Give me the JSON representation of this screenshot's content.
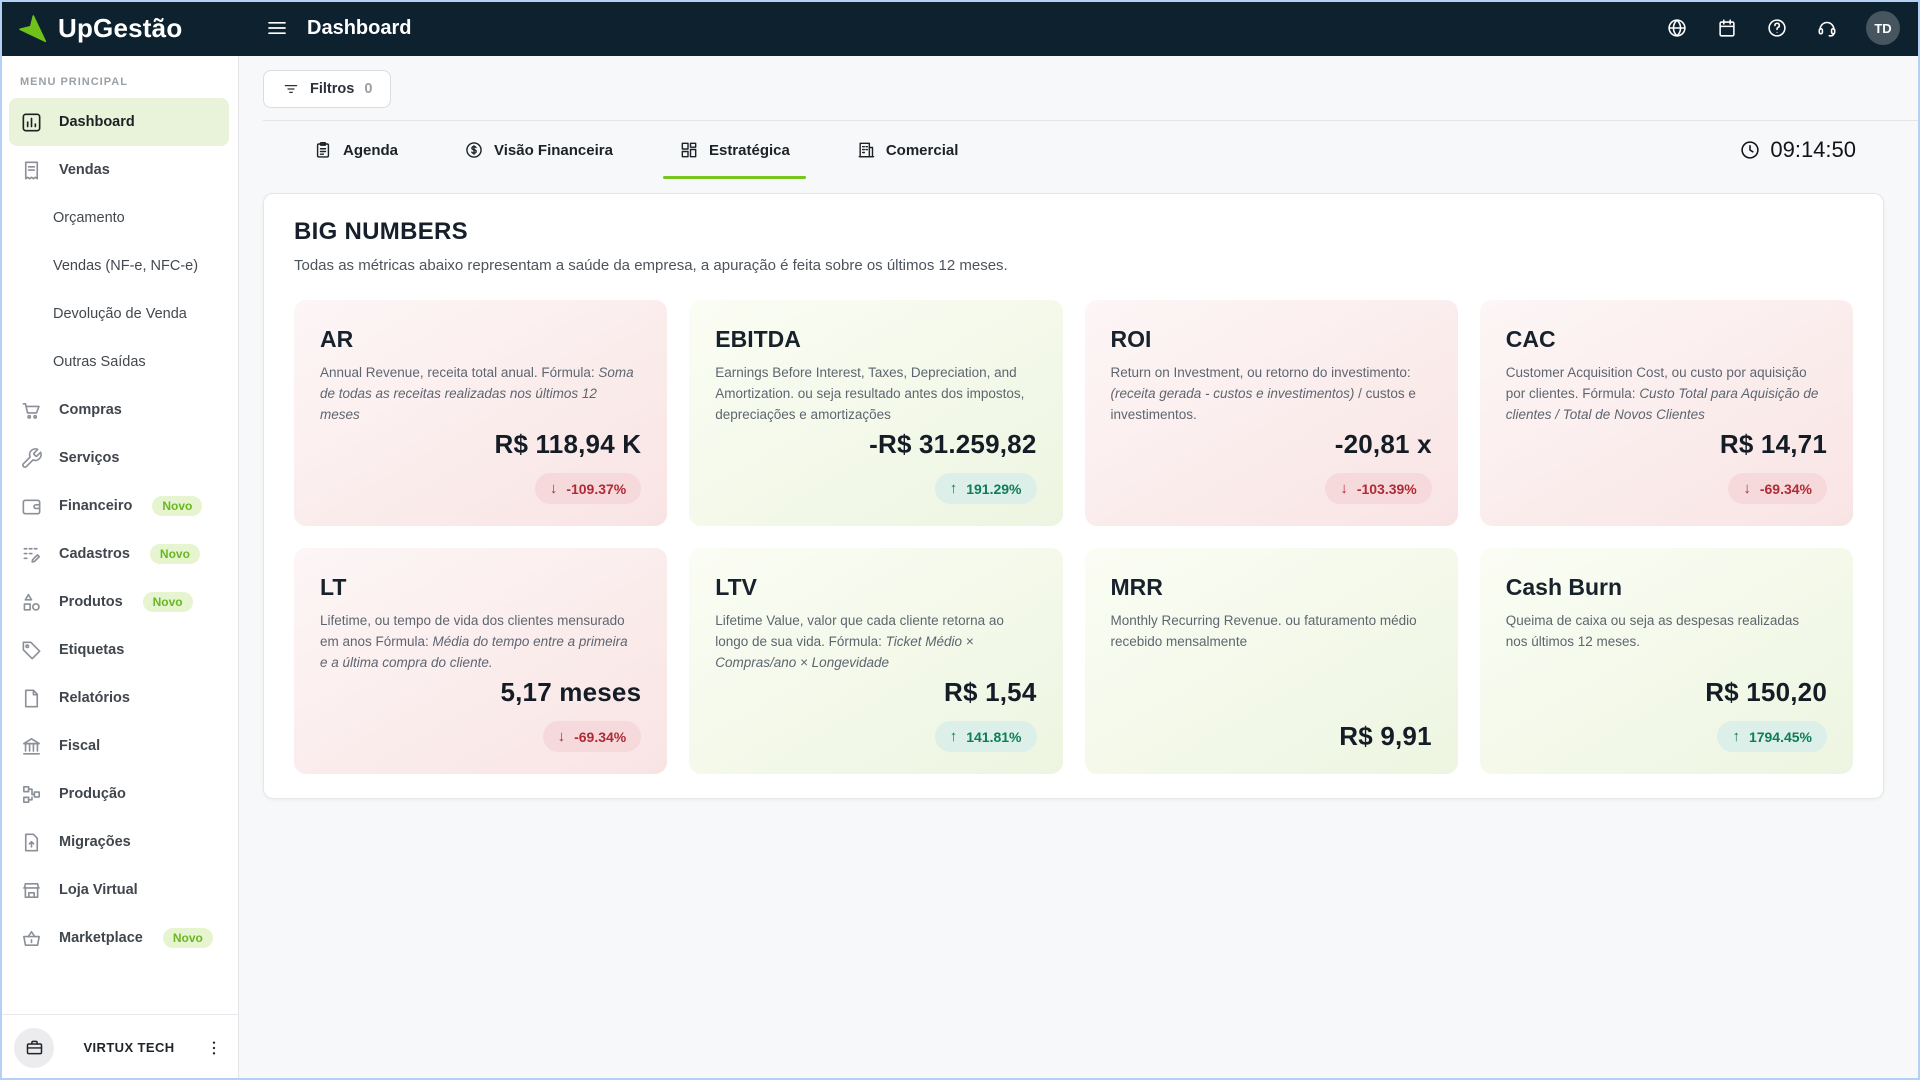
{
  "colors": {
    "accent_green": "#76c61d",
    "negative_red": "#b02a37",
    "positive_teal": "#0e7c5b",
    "topbar_bg": "#0d212e"
  },
  "topbar": {
    "brand": "UpGestão",
    "page_title": "Dashboard",
    "avatar_initials": "TD",
    "action_icons": [
      "globe-icon",
      "calendar-icon",
      "help-icon",
      "headset-icon"
    ]
  },
  "sidebar": {
    "section_label": "MENU PRINCIPAL",
    "items": [
      {
        "label": "Dashboard",
        "icon": "bar-chart-icon",
        "active": true
      },
      {
        "label": "Vendas",
        "icon": "receipt-icon"
      },
      {
        "label": "Orçamento",
        "sub": true
      },
      {
        "label": "Vendas (NF-e, NFC-e)",
        "sub": true
      },
      {
        "label": "Devolução de Venda",
        "sub": true
      },
      {
        "label": "Outras Saídas",
        "sub": true
      },
      {
        "label": "Compras",
        "icon": "cart-icon"
      },
      {
        "label": "Serviços",
        "icon": "wrench-icon"
      },
      {
        "label": "Financeiro",
        "icon": "wallet-icon",
        "badge": "Novo"
      },
      {
        "label": "Cadastros",
        "icon": "grid-dots-icon",
        "badge": "Novo"
      },
      {
        "label": "Produtos",
        "icon": "shapes-icon",
        "badge": "Novo"
      },
      {
        "label": "Etiquetas",
        "icon": "tag-icon"
      },
      {
        "label": "Relatórios",
        "icon": "file-icon"
      },
      {
        "label": "Fiscal",
        "icon": "bank-icon"
      },
      {
        "label": "Produção",
        "icon": "hierarchy-icon"
      },
      {
        "label": "Migrações",
        "icon": "file-upload-icon"
      },
      {
        "label": "Loja Virtual",
        "icon": "storefront-icon"
      },
      {
        "label": "Marketplace",
        "icon": "basket-icon",
        "badge": "Novo"
      }
    ],
    "footer": {
      "company": "VIRTUX TECH"
    }
  },
  "toolbar": {
    "filters_label": "Filtros",
    "filters_count": "0"
  },
  "tabs": {
    "items": [
      {
        "label": "Agenda",
        "icon": "clipboard-icon",
        "active": false
      },
      {
        "label": "Visão Financeira",
        "icon": "dollar-circle-icon",
        "active": false
      },
      {
        "label": "Estratégica",
        "icon": "grid-squares-icon",
        "active": true
      },
      {
        "label": "Comercial",
        "icon": "building-icon",
        "active": false
      }
    ],
    "clock": "09:14:50"
  },
  "big_numbers": {
    "title": "BIG NUMBERS",
    "subtitle": "Todas as métricas abaixo representam a saúde da empresa, a apuração é feita sobre os últimos 12 meses.",
    "cards": [
      {
        "title": "AR",
        "tone": "red",
        "description": [
          {
            "text": "Annual Revenue, receita total anual. Fórmula: ",
            "italic": false
          },
          {
            "text": "Soma de todas as receitas realizadas nos últimos 12 meses",
            "italic": true
          }
        ],
        "value": "R$ 118,94 K",
        "badge": {
          "direction": "down",
          "text": "-109.37%"
        }
      },
      {
        "title": "EBITDA",
        "tone": "green",
        "description": [
          {
            "text": "Earnings Before Interest, Taxes, Depreciation, and Amortization. ou seja resultado antes dos impostos, depreciações e amortizações",
            "italic": false
          }
        ],
        "value": "-R$ 31.259,82",
        "badge": {
          "direction": "up",
          "text": "191.29%"
        }
      },
      {
        "title": "ROI",
        "tone": "red",
        "description": [
          {
            "text": "Return on Investment, ou retorno do investimento: ",
            "italic": false
          },
          {
            "text": "(receita gerada - custos e investimentos)",
            "italic": true
          },
          {
            "text": " / custos e investimentos.",
            "italic": false
          }
        ],
        "value": "-20,81 x",
        "badge": {
          "direction": "down",
          "text": "-103.39%"
        }
      },
      {
        "title": "CAC",
        "tone": "red",
        "description": [
          {
            "text": "Customer Acquisition Cost, ou custo por aquisição por clientes. Fórmula: ",
            "italic": false
          },
          {
            "text": "Custo Total para Aquisição de clientes / Total de Novos Clientes",
            "italic": true
          }
        ],
        "value": "R$ 14,71",
        "badge": {
          "direction": "down",
          "text": "-69.34%"
        }
      },
      {
        "title": "LT",
        "tone": "red",
        "description": [
          {
            "text": "Lifetime, ou tempo de vida dos clientes mensurado em anos Fórmula: ",
            "italic": false
          },
          {
            "text": "Média do tempo entre a primeira e a última compra do cliente.",
            "italic": true
          }
        ],
        "value": "5,17 meses",
        "badge": {
          "direction": "down",
          "text": "-69.34%"
        }
      },
      {
        "title": "LTV",
        "tone": "green",
        "description": [
          {
            "text": "Lifetime Value, valor que cada cliente retorna ao longo de sua vida. Fórmula: ",
            "italic": false
          },
          {
            "text": "Ticket Médio × Compras/ano × Longevidade",
            "italic": true
          }
        ],
        "value": "R$ 1,54",
        "badge": {
          "direction": "up",
          "text": "141.81%"
        }
      },
      {
        "title": "MRR",
        "tone": "green",
        "description": [
          {
            "text": "Monthly Recurring Revenue. ou faturamento médio recebido mensalmente",
            "italic": false
          }
        ],
        "value": "R$ 9,91",
        "badge": null
      },
      {
        "title": "Cash Burn",
        "tone": "green",
        "description": [
          {
            "text": "Queima de caixa ou seja as despesas realizadas nos últimos 12 meses.",
            "italic": false
          }
        ],
        "value": "R$ 150,20",
        "badge": {
          "direction": "up",
          "text": "1794.45%"
        }
      }
    ]
  }
}
